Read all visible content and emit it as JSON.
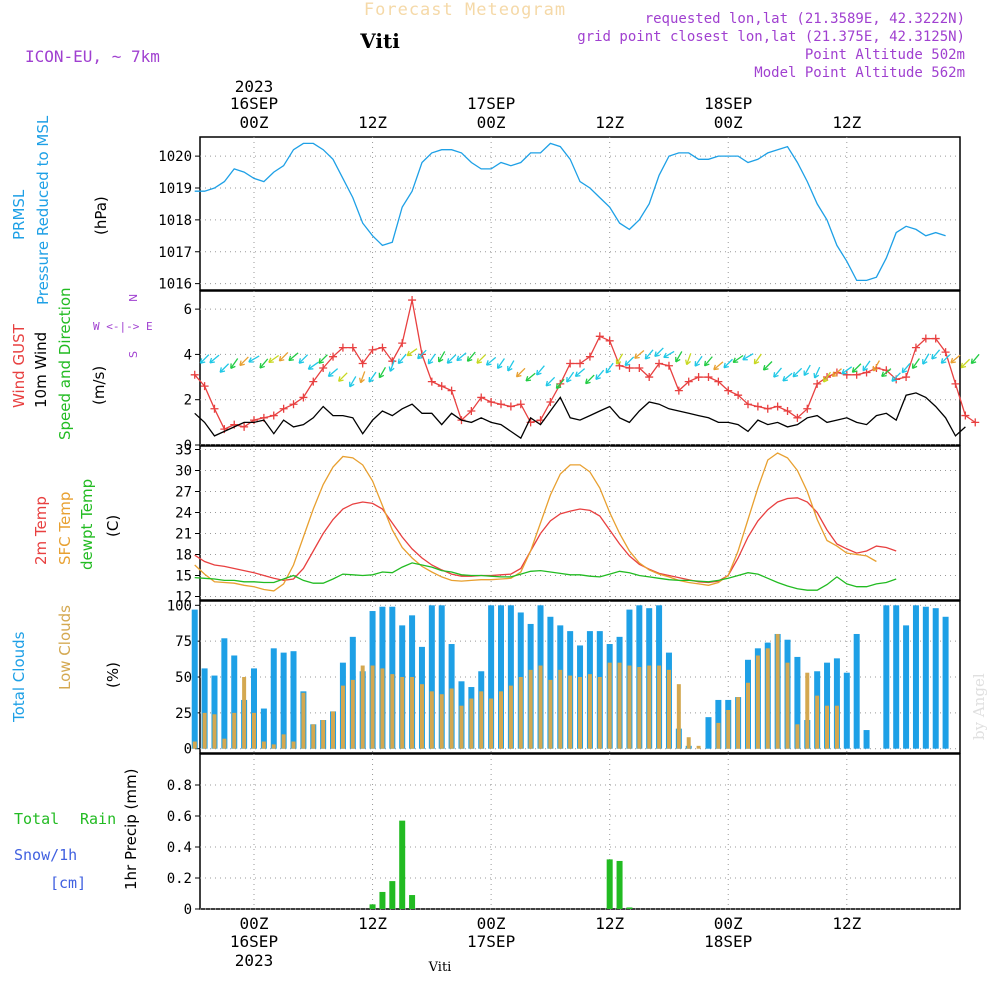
{
  "header": {
    "title": "Forecast Meteogram",
    "station": "Viti",
    "model": "ICON-EU, ~ 7km",
    "info": [
      "requested lon,lat (21.3589E, 42.3222N)",
      "grid point closest lon,lat (21.375E, 42.3125N)",
      "Point Altitude 502m",
      "Model Point Altitude 562m"
    ],
    "watermark": "by Angel",
    "footer": "Viti"
  },
  "time_axis": {
    "top_year": "2023",
    "ticks": [
      {
        "t": 0,
        "date": "16SEP",
        "hour": "00Z"
      },
      {
        "t": 12,
        "date": "",
        "hour": "12Z"
      },
      {
        "t": 24,
        "date": "17SEP",
        "hour": "00Z"
      },
      {
        "t": 36,
        "date": "",
        "hour": "12Z"
      },
      {
        "t": 48,
        "date": "18SEP",
        "hour": "00Z"
      },
      {
        "t": 60,
        "date": "",
        "hour": "12Z"
      }
    ],
    "bottom_ticks": [
      {
        "t": 0,
        "hour": "00Z",
        "date": "16SEP",
        "year": "2023"
      },
      {
        "t": 12,
        "hour": "12Z",
        "date": "",
        "year": ""
      },
      {
        "t": 24,
        "hour": "00Z",
        "date": "17SEP",
        "year": ""
      },
      {
        "t": 36,
        "hour": "12Z",
        "date": "",
        "year": ""
      },
      {
        "t": 48,
        "hour": "00Z",
        "date": "18SEP",
        "year": ""
      },
      {
        "t": 60,
        "hour": "12Z",
        "date": "",
        "year": ""
      }
    ]
  },
  "panels": {
    "pressure": {
      "labels": [
        "PRMSL",
        "Pressure Reduced to MSL"
      ],
      "unit": "(hPa)",
      "label_color": "#1ea0e6"
    },
    "wind": {
      "labels": [
        "Wind GUST",
        "10m Wind",
        "Speed and Direction"
      ],
      "label_colors": [
        "#e84040",
        "#000000",
        "#22bb22"
      ],
      "unit": "(m/s)",
      "compass": [
        "N",
        "W <-|-> E",
        "S"
      ]
    },
    "temp": {
      "labels": [
        "2m Temp",
        "SFC Temp",
        "dewpt Temp"
      ],
      "label_colors": [
        "#e84040",
        "#e8a030",
        "#22bb22"
      ],
      "unit": "(C)"
    },
    "clouds": {
      "labels": [
        "Total Clouds",
        "Low Clouds"
      ],
      "label_colors": [
        "#1ea0e6",
        "#d4a850"
      ],
      "unit": "(%)"
    },
    "precip": {
      "labels": [
        "Total",
        "Rain",
        "Snow/1h",
        "[cm]"
      ],
      "label_colors": [
        "#22bb22",
        "#22bb22",
        "#4060e0",
        "#4060e0"
      ],
      "unit": "1hr Precip (mm)"
    }
  },
  "chart_data": [
    {
      "type": "line",
      "title": "PRMSL Pressure Reduced to MSL",
      "ylabel": "(hPa)",
      "ylim": [
        1015.8,
        1020.6
      ],
      "yticks": [
        1016,
        1017,
        1018,
        1019,
        1020
      ],
      "x_hours_start": -6,
      "x_hours_step": 1,
      "series": [
        {
          "name": "PRMSL",
          "color": "#1ea0e6",
          "values": [
            1018.9,
            1018.9,
            1019.0,
            1019.2,
            1019.6,
            1019.5,
            1019.3,
            1019.2,
            1019.5,
            1019.7,
            1020.2,
            1020.4,
            1020.4,
            1020.2,
            1019.9,
            1019.3,
            1018.7,
            1017.9,
            1017.5,
            1017.2,
            1017.3,
            1018.4,
            1018.9,
            1019.8,
            1020.1,
            1020.2,
            1020.2,
            1020.1,
            1019.8,
            1019.6,
            1019.6,
            1019.8,
            1019.7,
            1019.8,
            1020.1,
            1020.1,
            1020.4,
            1020.3,
            1019.9,
            1019.2,
            1019.0,
            1018.7,
            1018.4,
            1017.9,
            1017.7,
            1018.0,
            1018.5,
            1019.4,
            1020.0,
            1020.1,
            1020.1,
            1019.9,
            1019.9,
            1020.0,
            1020.0,
            1020.0,
            1019.8,
            1019.9,
            1020.1,
            1020.2,
            1020.3,
            1019.8,
            1019.2,
            1018.5,
            1018.0,
            1017.2,
            1016.7,
            1016.1,
            1016.1,
            1016.2,
            1016.8,
            1017.6,
            1017.8,
            1017.7,
            1017.5,
            1017.6,
            1017.5
          ]
        }
      ]
    },
    {
      "type": "line",
      "title": "Wind GUST / 10m Wind Speed and Direction",
      "ylabel": "(m/s)",
      "ylim": [
        0,
        6.8
      ],
      "yticks": [
        0,
        2,
        4,
        6
      ],
      "x_hours_start": -6,
      "x_hours_step": 1,
      "series": [
        {
          "name": "Wind GUST",
          "color": "#e84040",
          "values": [
            3.1,
            2.6,
            1.6,
            0.7,
            0.9,
            0.8,
            1.1,
            1.2,
            1.3,
            1.6,
            1.8,
            2.1,
            2.8,
            3.4,
            3.9,
            4.3,
            4.3,
            3.6,
            4.2,
            4.3,
            3.7,
            4.5,
            6.4,
            4.0,
            2.8,
            2.6,
            2.4,
            1.1,
            1.5,
            2.1,
            1.9,
            1.8,
            1.7,
            1.8,
            1.0,
            1.1,
            1.9,
            2.7,
            3.6,
            3.6,
            3.9,
            4.8,
            4.6,
            3.5,
            3.4,
            3.4,
            3.0,
            3.6,
            3.5,
            2.4,
            2.8,
            3.0,
            3.0,
            2.8,
            2.4,
            2.2,
            1.8,
            1.7,
            1.6,
            1.7,
            1.5,
            1.2,
            1.6,
            2.7,
            3.0,
            3.2,
            3.1,
            3.1,
            3.2,
            3.4,
            3.3,
            2.9,
            3.0,
            4.3,
            4.7,
            4.7,
            4.1,
            2.7,
            1.3,
            1.0
          ]
        },
        {
          "name": "10m Wind",
          "color": "#000000",
          "values": [
            1.4,
            1.0,
            0.4,
            0.6,
            0.8,
            1.0,
            1.0,
            1.1,
            0.5,
            1.1,
            0.8,
            0.9,
            1.2,
            1.7,
            1.3,
            1.3,
            1.2,
            0.5,
            1.1,
            1.5,
            1.3,
            1.6,
            1.8,
            1.4,
            1.4,
            0.9,
            1.4,
            1.1,
            1.0,
            1.2,
            1.0,
            0.9,
            0.6,
            0.3,
            1.2,
            0.9,
            1.5,
            2.1,
            1.2,
            1.1,
            1.3,
            1.5,
            1.7,
            1.2,
            1.0,
            1.5,
            1.9,
            1.8,
            1.6,
            1.5,
            1.4,
            1.3,
            1.2,
            1.0,
            1.0,
            0.9,
            0.6,
            1.1,
            0.9,
            1.0,
            0.8,
            0.9,
            1.2,
            1.3,
            1.0,
            1.1,
            1.2,
            1.0,
            0.9,
            1.3,
            1.4,
            1.1,
            2.2,
            2.3,
            2.1,
            1.7,
            1.2,
            0.4,
            0.8
          ]
        }
      ]
    },
    {
      "type": "line",
      "title": "2m Temp / SFC Temp / dewpt Temp",
      "ylabel": "(C)",
      "ylim": [
        11.5,
        33.5
      ],
      "yticks": [
        12,
        15,
        18,
        21,
        24,
        27,
        30,
        33
      ],
      "x_hours_start": -6,
      "x_hours_step": 1,
      "series": [
        {
          "name": "2m Temp",
          "color": "#e84040",
          "values": [
            17.9,
            17.0,
            16.5,
            16.3,
            16.0,
            15.7,
            15.4,
            15.0,
            14.6,
            14.3,
            14.5,
            16.0,
            18.5,
            21.0,
            23.0,
            24.5,
            25.2,
            25.5,
            25.3,
            24.5,
            22.5,
            20.5,
            18.8,
            17.5,
            16.5,
            15.8,
            15.2,
            14.9,
            14.9,
            15.0,
            15.0,
            15.1,
            15.2,
            16.0,
            18.5,
            21.0,
            22.8,
            23.8,
            24.2,
            24.5,
            24.3,
            23.5,
            21.5,
            19.5,
            17.8,
            16.6,
            15.9,
            15.3,
            15.0,
            14.7,
            14.4,
            14.1,
            14.0,
            14.2,
            15.0,
            17.5,
            20.5,
            22.8,
            24.4,
            25.5,
            26.0,
            26.1,
            25.5,
            24.0,
            21.5,
            19.5,
            18.8,
            18.2,
            18.5,
            19.2,
            19.0,
            18.5
          ]
        },
        {
          "name": "SFC Temp",
          "color": "#e8a030",
          "values": [
            16.5,
            15.2,
            14.1,
            14.0,
            13.9,
            13.6,
            13.4,
            13.0,
            12.8,
            13.8,
            16.5,
            20.5,
            24.5,
            28.0,
            30.5,
            32.0,
            31.8,
            30.8,
            28.5,
            25.0,
            21.5,
            19.0,
            17.5,
            16.3,
            15.5,
            14.8,
            14.3,
            14.2,
            14.3,
            14.4,
            14.4,
            14.5,
            14.6,
            15.5,
            18.5,
            22.5,
            26.5,
            29.5,
            30.8,
            30.8,
            29.8,
            27.5,
            24.0,
            21.0,
            18.5,
            16.8,
            15.8,
            15.2,
            14.8,
            14.3,
            14.0,
            13.8,
            13.6,
            14.0,
            15.0,
            18.5,
            23.0,
            27.5,
            31.5,
            32.5,
            31.8,
            30.0,
            27.0,
            23.0,
            20.0,
            19.2,
            18.2,
            18.0,
            17.8,
            17.0
          ]
        },
        {
          "name": "dewpt Temp",
          "color": "#22bb22",
          "values": [
            14.7,
            14.6,
            14.5,
            14.3,
            14.3,
            14.1,
            14.1,
            14.0,
            14.0,
            14.5,
            15.0,
            14.3,
            13.9,
            13.9,
            14.5,
            15.2,
            15.1,
            15.0,
            15.1,
            15.5,
            15.4,
            16.2,
            16.8,
            16.5,
            16.2,
            15.7,
            15.5,
            15.1,
            15.0,
            15.0,
            14.9,
            14.8,
            14.8,
            15.2,
            15.6,
            15.7,
            15.5,
            15.3,
            15.1,
            15.1,
            14.9,
            14.8,
            15.2,
            15.6,
            15.4,
            15.0,
            14.8,
            14.6,
            14.4,
            14.3,
            14.3,
            14.2,
            14.1,
            14.3,
            14.6,
            15.0,
            15.4,
            15.2,
            14.6,
            14.0,
            13.5,
            13.1,
            12.9,
            12.9,
            13.7,
            14.8,
            13.8,
            13.4,
            13.4,
            13.8,
            14.0,
            14.5
          ]
        }
      ]
    },
    {
      "type": "bar",
      "title": "Total Clouds / Low Clouds",
      "ylabel": "(%)",
      "ylim": [
        -3,
        103
      ],
      "yticks": [
        0,
        25,
        50,
        75,
        100
      ],
      "x_hours_start": -6,
      "x_hours_step": 1,
      "series": [
        {
          "name": "Total Clouds",
          "color": "#1ea0e6",
          "values": [
            97,
            56,
            51,
            77,
            65,
            34,
            56,
            28,
            70,
            67,
            68,
            40,
            17,
            20,
            26,
            60,
            78,
            54,
            96,
            99,
            99,
            86,
            93,
            71,
            100,
            100,
            73,
            47,
            43,
            54,
            100,
            100,
            100,
            95,
            87,
            100,
            92,
            86,
            82,
            72,
            82,
            82,
            73,
            78,
            97,
            100,
            98,
            100,
            67,
            14,
            2,
            0,
            22,
            34,
            34,
            36,
            62,
            70,
            74,
            80,
            76,
            64,
            20,
            54,
            60,
            63,
            53,
            80,
            13,
            0,
            100,
            100,
            86,
            100,
            99,
            98,
            92
          ]
        },
        {
          "name": "Low Clouds",
          "color": "#d4a850",
          "values": [
            5,
            25,
            24,
            7,
            25,
            50,
            25,
            5,
            3,
            10,
            5,
            39,
            17,
            20,
            26,
            44,
            48,
            58,
            58,
            56,
            52,
            50,
            50,
            45,
            40,
            38,
            42,
            30,
            35,
            40,
            35,
            40,
            44,
            50,
            55,
            58,
            48,
            55,
            51,
            50,
            52,
            50,
            60,
            60,
            58,
            57,
            58,
            58,
            55,
            45,
            8,
            2,
            0,
            18,
            27,
            36,
            46,
            65,
            70,
            80,
            60,
            17,
            53,
            37,
            30,
            30,
            0,
            0,
            0,
            0,
            0,
            0,
            0,
            0,
            0,
            0,
            0
          ]
        }
      ]
    },
    {
      "type": "bar",
      "title": "1hr Precip",
      "ylabel": "1hr Precip (mm)",
      "ylim": [
        0,
        1.0
      ],
      "yticks": [
        0,
        0.2,
        0.4,
        0.6,
        0.8
      ],
      "x_hours_start": -6,
      "x_hours_step": 1,
      "series": [
        {
          "name": "Total Rain",
          "color": "#22bb22",
          "values": [
            0,
            0,
            0,
            0,
            0,
            0,
            0,
            0,
            0,
            0,
            0,
            0,
            0,
            0,
            0,
            0,
            0,
            0,
            0.03,
            0.11,
            0.18,
            0.57,
            0.09,
            0,
            0,
            0,
            0,
            0,
            0,
            0,
            0,
            0,
            0,
            0,
            0,
            0,
            0,
            0,
            0,
            0,
            0,
            0,
            0.32,
            0.31,
            0.01,
            0,
            0,
            0,
            0,
            0,
            0,
            0,
            0,
            0,
            0,
            0,
            0,
            0,
            0,
            0,
            0,
            0,
            0,
            0,
            0,
            0,
            0,
            0,
            0,
            0,
            0,
            0,
            0,
            0,
            0,
            0,
            0
          ]
        }
      ]
    }
  ],
  "wind_arrows": {
    "colors_by_speed": [
      "#1e40ff",
      "#20c8e6",
      "#22cc44",
      "#c8d820",
      "#e8a030",
      "#e84040",
      "#9020d0"
    ],
    "directions_deg": [
      225,
      230,
      225,
      215,
      225,
      240,
      220,
      235,
      225,
      230,
      225,
      235,
      225,
      230,
      225,
      210,
      200,
      215,
      210,
      200,
      220,
      235,
      225,
      215,
      210,
      225,
      230,
      220,
      225,
      230,
      215,
      210,
      225,
      230,
      220,
      225,
      220,
      215,
      230,
      225,
      220,
      215,
      210,
      225,
      230,
      220,
      225,
      240,
      210,
      200,
      215,
      220,
      230,
      225,
      235,
      240,
      215,
      225,
      220,
      230,
      225,
      210,
      205,
      215,
      230,
      235,
      225,
      215,
      210,
      230,
      225,
      220,
      215,
      210,
      220,
      225,
      230,
      225,
      220
    ],
    "speeds": [
      3.8,
      3.8,
      3.4,
      3.6,
      3.7,
      3.8,
      3.6,
      3.8,
      3.9,
      3.9,
      3.8,
      3.5,
      3.8,
      3.2,
      3.0,
      2.8,
      3.0,
      3.0,
      3.2,
      3.5,
      3.8,
      4.1,
      4.0,
      3.8,
      3.9,
      3.8,
      3.9,
      3.9,
      3.8,
      3.7,
      3.6,
      3.5,
      3.2,
      3.0,
      3.3,
      2.8,
      2.7,
      3.0,
      3.2,
      2.9,
      3.1,
      3.4,
      3.8,
      3.7,
      4.0,
      4.0,
      4.1,
      4.0,
      3.9,
      3.8,
      3.7,
      3.7,
      3.5,
      3.6,
      3.8,
      3.9,
      3.8,
      3.5,
      3.2,
      3.0,
      3.2,
      3.3,
      3.2,
      3.0,
      3.2,
      3.3,
      3.4,
      3.5,
      3.5,
      3.2,
      3.0,
      3.4,
      3.6,
      3.8,
      4.0,
      3.8,
      3.8,
      3.6,
      3.8
    ]
  }
}
